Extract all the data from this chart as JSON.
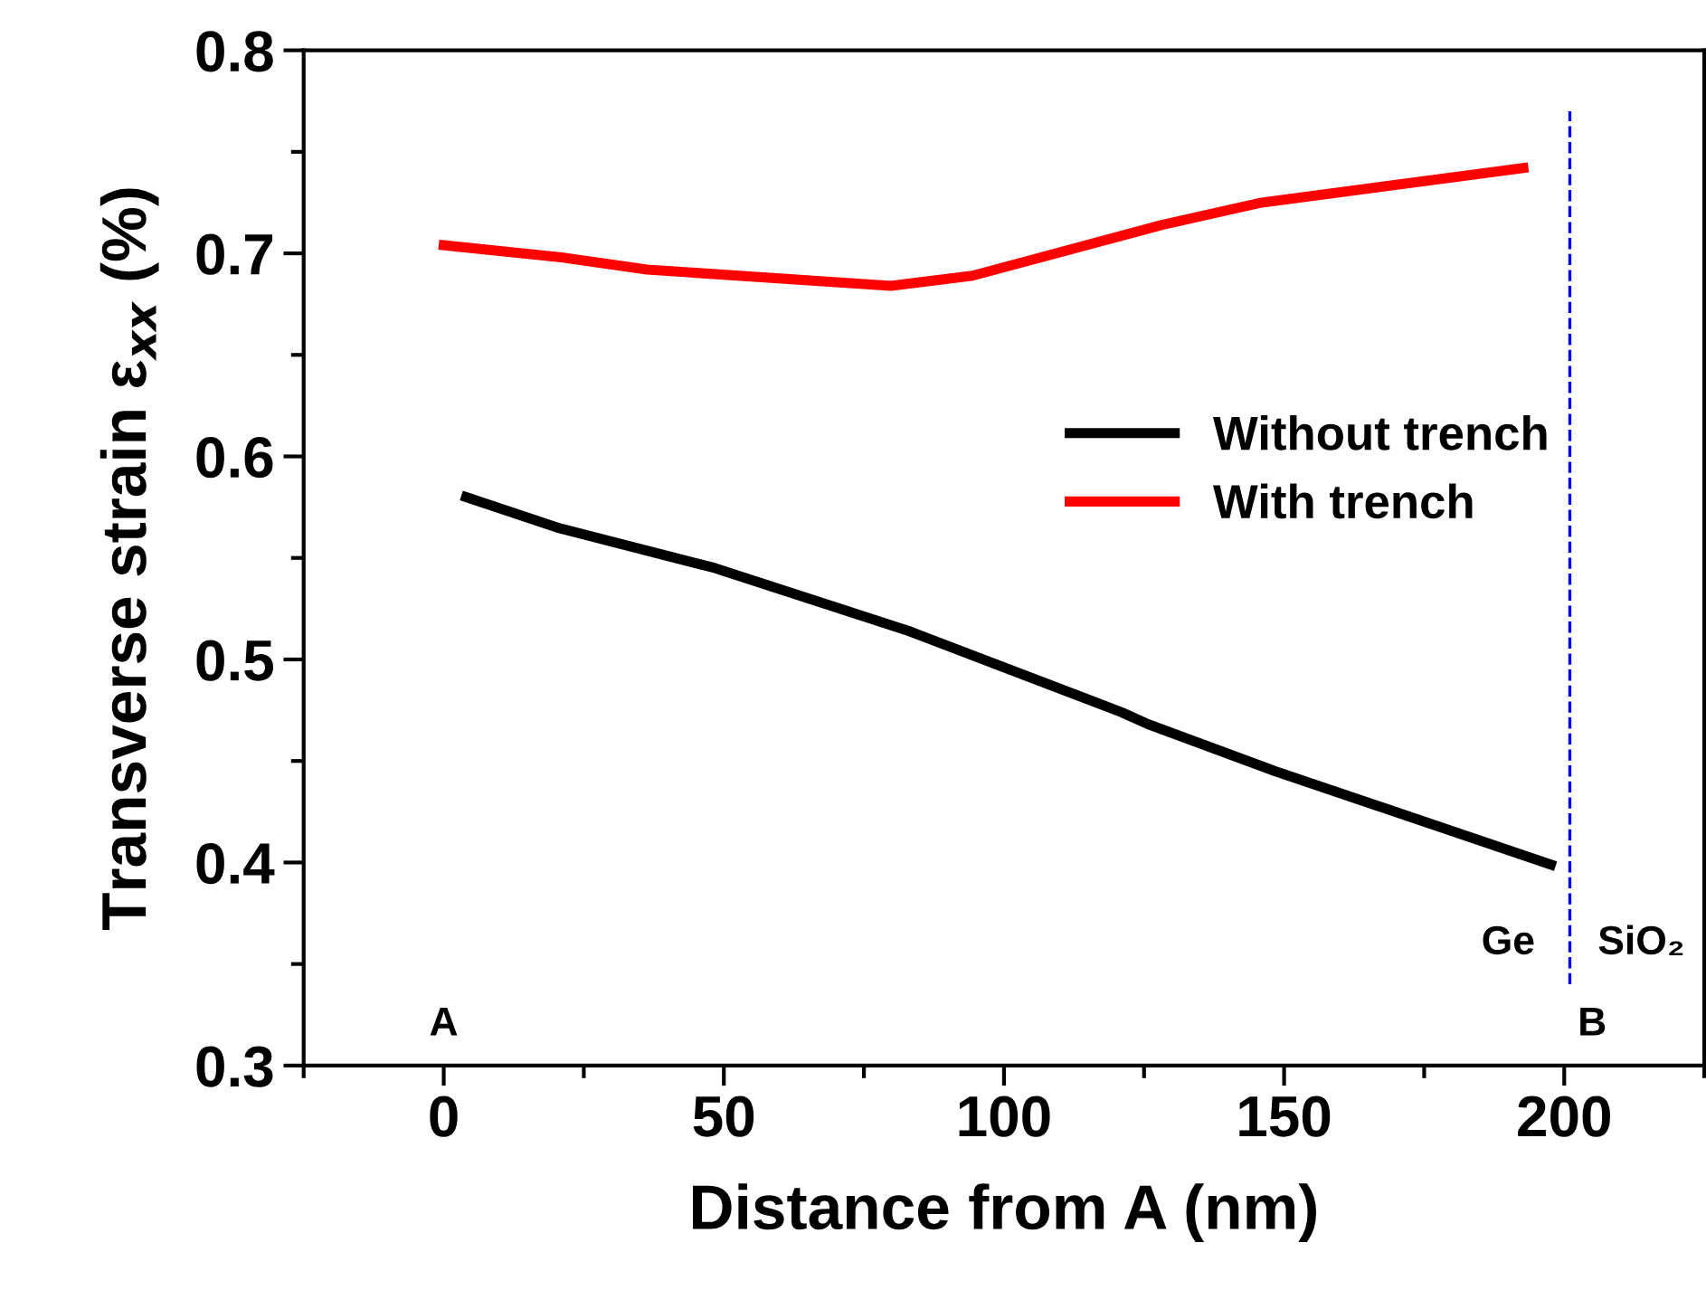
{
  "chart_data": {
    "type": "line",
    "xlabel": "Distance from A (nm)",
    "ylabel": "Transverse strain ε$_{xx}$ (%)",
    "xlim": [
      -25,
      225
    ],
    "xticks": [
      0,
      50,
      100,
      150,
      200
    ],
    "ylim": [
      0.3,
      0.8
    ],
    "yticks": [
      0.3,
      0.4,
      0.5,
      0.6,
      0.7,
      0.8
    ],
    "series": [
      {
        "name": "Without trench",
        "color": "#000000",
        "x": [
          4,
          20.2,
          48.4,
          83,
          121,
          125.8,
          148.4,
          197.6
        ],
        "values": [
          0.58,
          0.565,
          0.545,
          0.514,
          0.474,
          0.468,
          0.445,
          0.399
        ]
      },
      {
        "name": "With trench",
        "color": "#ff0000",
        "x": [
          0,
          21,
          36.3,
          79.8,
          94.4,
          128.2,
          146,
          192.7
        ],
        "values": [
          0.704,
          0.698,
          0.692,
          0.684,
          0.689,
          0.714,
          0.725,
          0.742
        ]
      }
    ],
    "ref_lines": [
      {
        "axis": "x",
        "value": 201,
        "color": "#0000ff",
        "line_style": "dashed"
      }
    ],
    "annotations": [
      "A",
      "B",
      "Ge",
      "SiO₂"
    ],
    "legend": "center right",
    "grid": false,
    "marker": "none",
    "line_style": "solid"
  }
}
